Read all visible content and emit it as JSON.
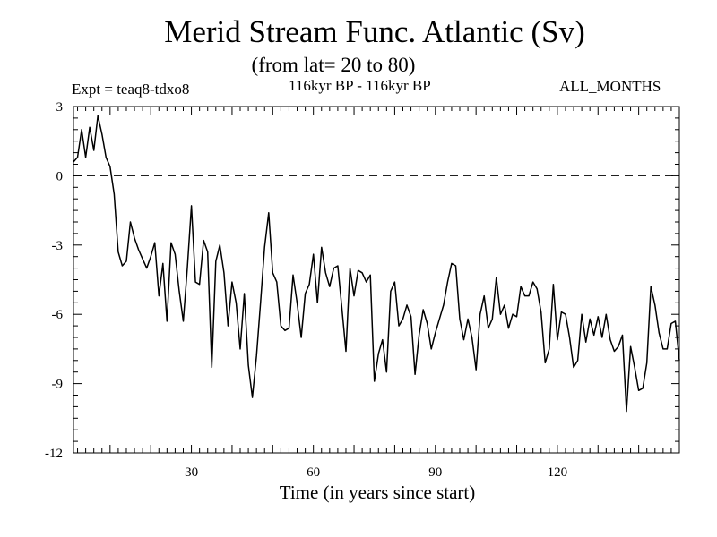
{
  "chart_data": {
    "type": "line",
    "title": "Merid Stream Func. Atlantic (Sv)",
    "subtitle": "(from lat= 20 to 80)",
    "header_left": "Expt = teaq8-tdxo8",
    "header_center": "116kyr BP - 116kyr BP",
    "header_right": "ALL_MONTHS",
    "xlabel": "Time (in years since start)",
    "ylabel": "",
    "xlim": [
      1,
      150
    ],
    "ylim": [
      -12,
      3
    ],
    "xticks": [
      30,
      60,
      90,
      120
    ],
    "yticks": [
      3,
      0,
      -3,
      -6,
      -9,
      -12
    ],
    "reference_line": 0,
    "series": [
      {
        "name": "Merid Stream Func.",
        "values": [
          0.6,
          0.8,
          2.0,
          0.8,
          2.1,
          1.1,
          2.6,
          1.8,
          0.8,
          0.4,
          -0.8,
          -3.3,
          -3.9,
          -3.7,
          -2.0,
          -2.7,
          -3.2,
          -3.6,
          -4.0,
          -3.5,
          -2.9,
          -5.2,
          -3.8,
          -6.3,
          -2.9,
          -3.4,
          -5.0,
          -6.3,
          -4.0,
          -1.3,
          -4.6,
          -4.7,
          -2.8,
          -3.3,
          -8.3,
          -3.7,
          -3.0,
          -4.2,
          -6.5,
          -4.6,
          -5.5,
          -7.5,
          -5.1,
          -8.2,
          -9.6,
          -7.8,
          -5.5,
          -3.1,
          -1.6,
          -4.2,
          -4.6,
          -6.5,
          -6.7,
          -6.6,
          -4.3,
          -5.5,
          -7.0,
          -5.1,
          -4.7,
          -3.4,
          -5.5,
          -3.1,
          -4.2,
          -4.8,
          -4.0,
          -3.9,
          -5.7,
          -7.6,
          -4.0,
          -5.2,
          -4.1,
          -4.2,
          -4.6,
          -4.3,
          -8.9,
          -7.7,
          -7.1,
          -8.5,
          -5.0,
          -4.6,
          -6.5,
          -6.2,
          -5.6,
          -6.1,
          -8.6,
          -6.9,
          -5.8,
          -6.4,
          -7.5,
          -6.8,
          -6.2,
          -5.6,
          -4.6,
          -3.8,
          -3.9,
          -6.2,
          -7.1,
          -6.2,
          -7.0,
          -8.4,
          -6.0,
          -5.2,
          -6.6,
          -6.2,
          -4.4,
          -6.0,
          -5.6,
          -6.6,
          -6.0,
          -6.1,
          -4.8,
          -5.2,
          -5.2,
          -4.6,
          -4.9,
          -5.9,
          -8.1,
          -7.5,
          -4.7,
          -7.1,
          -5.9,
          -6.0,
          -7.0,
          -8.3,
          -8.0,
          -6.0,
          -7.2,
          -6.2,
          -6.9,
          -6.1,
          -7.0,
          -6.0,
          -7.1,
          -7.6,
          -7.4,
          -6.9,
          -10.2,
          -7.4,
          -8.3,
          -9.3,
          -9.2,
          -8.1,
          -4.8,
          -5.6,
          -6.8,
          -7.5,
          -7.5,
          -6.4,
          -6.3,
          -8.0
        ]
      }
    ]
  }
}
